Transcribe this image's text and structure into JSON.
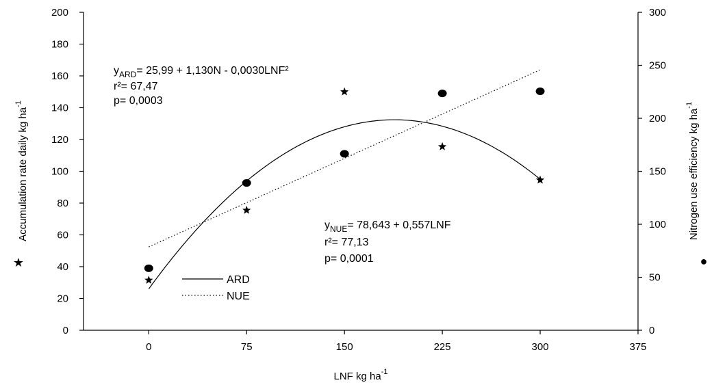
{
  "chart_data": {
    "type": "scatter",
    "x_axis": {
      "label": "LNF kg ha",
      "label_superscript": "-1",
      "range": [
        -50,
        375
      ],
      "ticks": [
        0,
        75,
        150,
        225,
        300,
        375
      ],
      "tick_labels": [
        "0",
        "75",
        "150",
        "225",
        "300",
        "375"
      ]
    },
    "y_left": {
      "label": "Accumulation rate daily  kg ha",
      "label_superscript": "-1",
      "range": [
        0,
        200
      ],
      "ticks": [
        0,
        20,
        40,
        60,
        80,
        100,
        120,
        140,
        160,
        180,
        200
      ],
      "tick_labels": [
        "0",
        "20",
        "40",
        "60",
        "80",
        "100",
        "120",
        "140",
        "160",
        "180",
        "200"
      ],
      "marker_symbol": "★"
    },
    "y_right": {
      "label": "Nitrogen use efficiency  kg ha",
      "label_superscript": "-1",
      "range": [
        0,
        300
      ],
      "ticks": [
        0,
        50,
        100,
        150,
        200,
        250,
        300
      ],
      "tick_labels": [
        "0",
        "50",
        "100",
        "150",
        "200",
        "250",
        "300"
      ],
      "marker_symbol": "●"
    },
    "series": [
      {
        "name": "ARD",
        "axis": "left",
        "marker": "star",
        "line_style": "solid",
        "x": [
          0,
          75,
          150,
          225,
          300
        ],
        "y": [
          31.5,
          75.5,
          150,
          115.5,
          94.5
        ],
        "fit": {
          "a": 25.99,
          "b": 1.13,
          "c": -0.003
        }
      },
      {
        "name": "NUE",
        "axis": "right",
        "marker": "circle",
        "line_style": "dotted",
        "x": [
          0,
          75,
          150,
          225,
          300
        ],
        "y": [
          58.5,
          139,
          166.5,
          223.5,
          225.5
        ],
        "fit": {
          "a": 78.643,
          "b": 0.557,
          "c": 0
        }
      }
    ],
    "equations": {
      "ard": {
        "y_prefix": "y",
        "subscript": "ARD",
        "rhs": "= 25,99 + 1,130N - 0,0030LNF²",
        "r2": "r²= 67,47",
        "p": "p= 0,0003"
      },
      "nue": {
        "y_prefix": "y",
        "subscript": "NUE",
        "rhs": "= 78,643 + 0,557LNF",
        "r2": "r²= 77,13",
        "p": "p= 0,0001"
      }
    },
    "legend": {
      "position": "bottom-left",
      "items": [
        {
          "label": "ARD",
          "style": "solid"
        },
        {
          "label": "NUE",
          "style": "dotted"
        }
      ]
    },
    "grid": false
  }
}
